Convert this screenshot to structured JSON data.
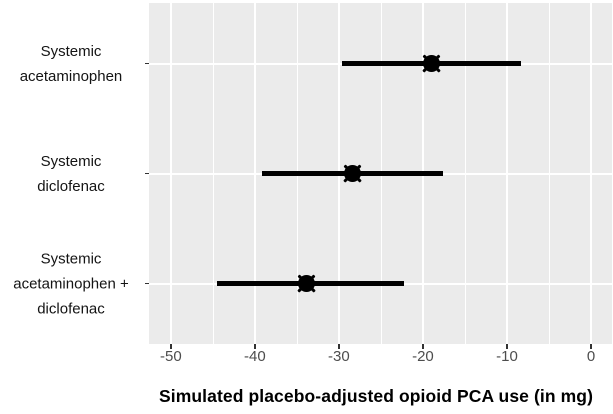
{
  "chart_data": {
    "type": "pointrange",
    "orientation": "horizontal",
    "title": "",
    "xlabel": "Simulated placebo-adjusted opioid PCA use (in mg)",
    "ylabel": "",
    "xlim": [
      -52.6,
      2.5
    ],
    "x_major_ticks": [
      -50,
      -40,
      -30,
      -20,
      -10,
      0
    ],
    "x_tick_labels": [
      "-50",
      "-40",
      "-30",
      "-20",
      "-10",
      "0"
    ],
    "x_minor_ticks": [
      -45,
      -35,
      -25,
      -15,
      -5
    ],
    "grid": "white major+minor vertical gridlines, white major horizontal gridlines on gray panel",
    "legend": "none",
    "categories": [
      "Systemic acetaminophen",
      "Systemic diclofenac",
      "Systemic acetaminophen + diclofenac"
    ],
    "points": [
      {
        "category": "Systemic acetaminophen",
        "label_lines": [
          "Systemic",
          "acetaminophen"
        ],
        "estimate": -19.0,
        "ci_low": -29.6,
        "ci_high": -8.3
      },
      {
        "category": "Systemic diclofenac",
        "label_lines": [
          "Systemic",
          "diclofenac"
        ],
        "estimate": -28.4,
        "ci_low": -39.2,
        "ci_high": -17.6
      },
      {
        "category": "Systemic acetaminophen + diclofenac",
        "label_lines": [
          "Systemic",
          "acetaminophen +",
          "diclofenac"
        ],
        "estimate": -33.9,
        "ci_low": -44.5,
        "ci_high": -22.3
      }
    ]
  },
  "colors": {
    "background": "#ffffff",
    "panel_bg": "#ebebeb",
    "gridline": "#ffffff",
    "data": "#000000",
    "tick_label_text": "#4d4d4d",
    "category_label_text": "#141414",
    "axis_title_text": "#000000"
  }
}
